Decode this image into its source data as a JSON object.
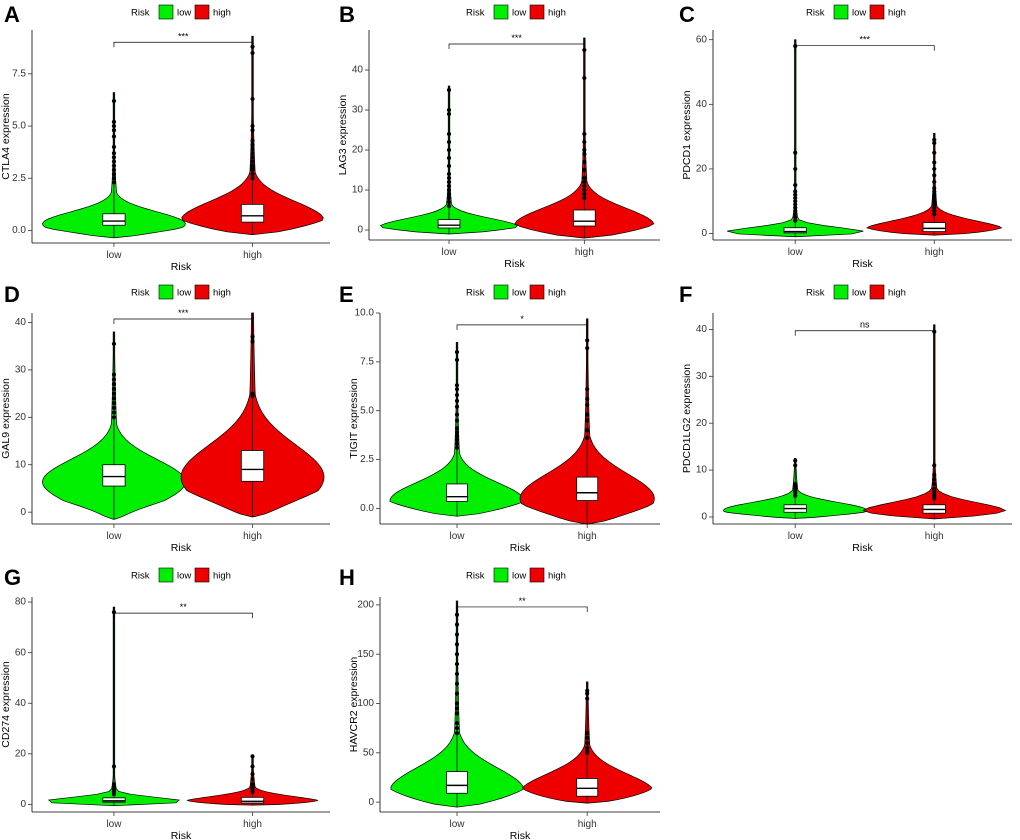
{
  "colors": {
    "low": "#00ee00",
    "high": "#ee0000",
    "box": "#ffffff",
    "outline": "#000000"
  },
  "chart_data": [
    {
      "type": "violin",
      "panel": "A",
      "gene": "CTLA4",
      "ylabel": "CTLA4 expression",
      "xlabel": "Risk",
      "categories": [
        "low",
        "high"
      ],
      "ylim": [
        -0.6,
        9.6
      ],
      "ticks": [
        0,
        2.5,
        5,
        7.5
      ],
      "tick_labels": [
        "0.0",
        "2.5",
        "5.0",
        "7.5"
      ],
      "legend": {
        "title": "Risk",
        "labels": [
          "low",
          "high"
        ]
      },
      "significance": "***",
      "groups": [
        {
          "name": "low",
          "q1": 0.25,
          "median": 0.45,
          "q3": 0.8,
          "whisker_low": -0.35,
          "whisker_high": 6.6,
          "outliers": [
            2.3,
            2.5,
            2.7,
            2.9,
            3.1,
            3.3,
            3.5,
            3.7,
            4.0,
            4.5,
            4.8,
            5.0,
            5.2,
            6.2
          ]
        },
        {
          "name": "high",
          "q1": 0.4,
          "median": 0.7,
          "q3": 1.25,
          "whisker_low": -0.2,
          "whisker_high": 9.3,
          "outliers": [
            2.5,
            2.7,
            2.9,
            3.0,
            3.1,
            3.3,
            3.5,
            3.7,
            3.9,
            4.1,
            4.3,
            4.8,
            5.0,
            6.3,
            8.5,
            8.8
          ]
        }
      ]
    },
    {
      "type": "violin",
      "panel": "B",
      "gene": "LAG3",
      "ylabel": "LAG3 expression",
      "xlabel": "Risk",
      "categories": [
        "low",
        "high"
      ],
      "ylim": [
        -2.5,
        50
      ],
      "ticks": [
        0,
        10,
        20,
        30,
        40
      ],
      "tick_labels": [
        "0",
        "10",
        "20",
        "30",
        "40"
      ],
      "legend": {
        "title": "Risk",
        "labels": [
          "low",
          "high"
        ]
      },
      "significance": "***",
      "groups": [
        {
          "name": "low",
          "q1": 0.5,
          "median": 1.2,
          "q3": 2.6,
          "whisker_low": -1,
          "whisker_high": 36,
          "outliers": [
            6,
            7,
            8,
            9,
            10,
            11,
            12,
            13,
            14,
            16,
            18,
            20,
            22,
            24,
            29,
            30,
            35
          ]
        },
        {
          "name": "high",
          "q1": 1,
          "median": 2.2,
          "q3": 5,
          "whisker_low": -2,
          "whisker_high": 48,
          "outliers": [
            8,
            9,
            10,
            11,
            12,
            13,
            15,
            17,
            19,
            20,
            22,
            24,
            38,
            45
          ]
        }
      ]
    },
    {
      "type": "violin",
      "panel": "C",
      "gene": "PDCD1",
      "ylabel": "PDCD1 expression",
      "xlabel": "Risk",
      "categories": [
        "low",
        "high"
      ],
      "ylim": [
        -2,
        63
      ],
      "ticks": [
        0,
        20,
        40,
        60
      ],
      "tick_labels": [
        "0",
        "20",
        "40",
        "60"
      ],
      "legend": {
        "title": "Risk",
        "labels": [
          "low",
          "high"
        ]
      },
      "significance": "***",
      "groups": [
        {
          "name": "low",
          "q1": 0.2,
          "median": 0.6,
          "q3": 1.8,
          "whisker_low": -1,
          "whisker_high": 60,
          "outliers": [
            4,
            5,
            6,
            7,
            8,
            9,
            10,
            11,
            12,
            13,
            15,
            20,
            25,
            58
          ]
        },
        {
          "name": "high",
          "q1": 0.6,
          "median": 1.6,
          "q3": 3.4,
          "whisker_low": -0.5,
          "whisker_high": 31,
          "outliers": [
            6,
            7,
            8,
            9,
            10,
            11,
            12,
            13,
            14,
            16,
            18,
            20,
            22,
            25,
            28,
            29
          ]
        }
      ]
    },
    {
      "type": "violin",
      "panel": "D",
      "gene": "GAL9",
      "ylabel": "GAL9 expression",
      "xlabel": "Risk",
      "categories": [
        "low",
        "high"
      ],
      "ylim": [
        -2.5,
        42
      ],
      "ticks": [
        0,
        10,
        20,
        30,
        40
      ],
      "tick_labels": [
        "0",
        "10",
        "20",
        "30",
        "40"
      ],
      "legend": {
        "title": "Risk",
        "labels": [
          "low",
          "high"
        ]
      },
      "significance": "***",
      "groups": [
        {
          "name": "low",
          "q1": 5.5,
          "median": 7.5,
          "q3": 10,
          "whisker_low": -1.5,
          "whisker_high": 38,
          "outliers": [
            20,
            21,
            22,
            23,
            24,
            25,
            26,
            27,
            28,
            29,
            35.5
          ]
        },
        {
          "name": "high",
          "q1": 6.5,
          "median": 9,
          "q3": 13,
          "whisker_low": -1,
          "whisker_high": 42,
          "outliers": [
            24.5,
            25,
            36,
            37
          ]
        }
      ]
    },
    {
      "type": "violin",
      "panel": "E",
      "gene": "TIGIT",
      "ylabel": "TIGIT expression",
      "xlabel": "Risk",
      "categories": [
        "low",
        "high"
      ],
      "ylim": [
        -0.8,
        10
      ],
      "ticks": [
        0,
        2.5,
        5,
        7.5,
        10
      ],
      "tick_labels": [
        "0.0",
        "2.5",
        "5.0",
        "7.5",
        "10.0"
      ],
      "legend": {
        "title": "Risk",
        "labels": [
          "low",
          "high"
        ]
      },
      "significance": "*",
      "groups": [
        {
          "name": "low",
          "q1": 0.35,
          "median": 0.6,
          "q3": 1.25,
          "whisker_low": -0.4,
          "whisker_high": 8.5,
          "outliers": [
            3.1,
            3.3,
            3.5,
            3.7,
            3.9,
            4.1,
            4.5,
            4.8,
            5.2,
            5.5,
            5.8,
            6.1,
            6.3,
            7.6,
            8.0
          ]
        },
        {
          "name": "high",
          "q1": 0.4,
          "median": 0.8,
          "q3": 1.6,
          "whisker_low": -0.8,
          "whisker_high": 9.7,
          "outliers": [
            3.6,
            4.0,
            4.5,
            4.8,
            5.3,
            5.6,
            6.1,
            8.2,
            8.6
          ]
        }
      ]
    },
    {
      "type": "violin",
      "panel": "F",
      "gene": "PDCD1LG2",
      "ylabel": "PDCD1LG2 expression",
      "xlabel": "Risk",
      "categories": [
        "low",
        "high"
      ],
      "ylim": [
        -1.5,
        43.5
      ],
      "ticks": [
        0,
        10,
        20,
        30,
        40
      ],
      "tick_labels": [
        "0",
        "10",
        "20",
        "30",
        "40"
      ],
      "legend": {
        "title": "Risk",
        "labels": [
          "low",
          "high"
        ]
      },
      "significance": "ns",
      "groups": [
        {
          "name": "low",
          "q1": 1.0,
          "median": 1.8,
          "q3": 2.6,
          "whisker_low": -0.3,
          "whisker_high": 12.5,
          "outliers": [
            4.5,
            5,
            5.5,
            6,
            6.5,
            7,
            11,
            12
          ]
        },
        {
          "name": "high",
          "q1": 0.8,
          "median": 1.6,
          "q3": 2.6,
          "whisker_low": -0.4,
          "whisker_high": 41,
          "outliers": [
            4,
            4.5,
            5,
            5.5,
            6,
            7,
            8,
            9,
            11,
            39.5
          ]
        }
      ]
    },
    {
      "type": "violin",
      "panel": "G",
      "gene": "CD274",
      "ylabel": "CD274 expression",
      "xlabel": "Risk",
      "categories": [
        "low",
        "high"
      ],
      "ylim": [
        -3,
        82
      ],
      "ticks": [
        0,
        20,
        40,
        60,
        80
      ],
      "tick_labels": [
        "0",
        "20",
        "40",
        "60",
        "80"
      ],
      "legend": {
        "title": "Risk",
        "labels": [
          "low",
          "high"
        ]
      },
      "significance": "**",
      "groups": [
        {
          "name": "low",
          "q1": 0.9,
          "median": 1.4,
          "q3": 2.6,
          "whisker_low": -0.5,
          "whisker_high": 78,
          "outliers": [
            4,
            5,
            6,
            7,
            8,
            15,
            76
          ]
        },
        {
          "name": "high",
          "q1": 0.5,
          "median": 1.2,
          "q3": 2.8,
          "whisker_low": -0.3,
          "whisker_high": 19,
          "outliers": [
            5,
            6,
            7,
            8,
            10,
            12,
            15,
            19
          ]
        }
      ]
    },
    {
      "type": "violin",
      "panel": "H",
      "gene": "HAVCR2",
      "ylabel": "HAVCR2 expression",
      "xlabel": "Risk",
      "categories": [
        "low",
        "high"
      ],
      "ylim": [
        -10,
        208
      ],
      "ticks": [
        0,
        50,
        100,
        150,
        200
      ],
      "tick_labels": [
        "0",
        "50",
        "100",
        "150",
        "200"
      ],
      "legend": {
        "title": "Risk",
        "labels": [
          "low",
          "high"
        ]
      },
      "significance": "**",
      "groups": [
        {
          "name": "low",
          "q1": 9,
          "median": 17,
          "q3": 31,
          "whisker_low": -5,
          "whisker_high": 204,
          "outliers": [
            70,
            75,
            80,
            90,
            95,
            100,
            110,
            120,
            130,
            140,
            150,
            160,
            170,
            180,
            190
          ]
        },
        {
          "name": "high",
          "q1": 6,
          "median": 14,
          "q3": 24,
          "whisker_low": -1,
          "whisker_high": 122,
          "outliers": [
            50,
            52,
            55,
            60,
            65,
            70,
            105,
            110,
            113
          ]
        }
      ]
    }
  ]
}
